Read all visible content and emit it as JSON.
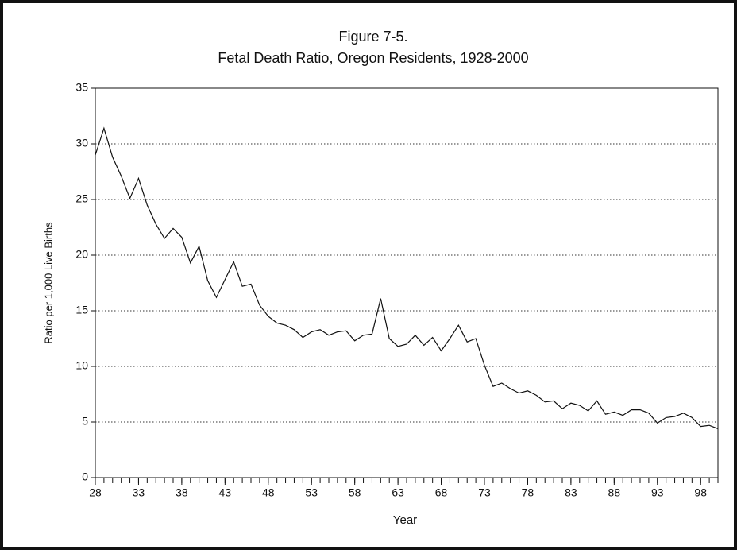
{
  "chart_data": {
    "type": "line",
    "title": "Figure 7-5.",
    "subtitle": "Fetal Death Ratio, Oregon Residents, 1928-2000",
    "x_label": "Year",
    "y_label": "Ratio per 1,000 Live Births",
    "x": [
      28,
      29,
      30,
      31,
      32,
      33,
      34,
      35,
      36,
      37,
      38,
      39,
      40,
      41,
      42,
      43,
      44,
      45,
      46,
      47,
      48,
      49,
      50,
      51,
      52,
      53,
      54,
      55,
      56,
      57,
      58,
      59,
      60,
      61,
      62,
      63,
      64,
      65,
      66,
      67,
      68,
      69,
      70,
      71,
      72,
      73,
      74,
      75,
      76,
      77,
      78,
      79,
      80,
      81,
      82,
      83,
      84,
      85,
      86,
      87,
      88,
      89,
      90,
      91,
      92,
      93,
      94,
      95,
      96,
      97,
      98,
      99,
      100
    ],
    "series": [
      {
        "color": "#111111",
        "values": [
          29.0,
          31.4,
          28.8,
          27.1,
          25.1,
          26.9,
          24.5,
          22.8,
          21.5,
          22.4,
          21.6,
          19.3,
          20.8,
          17.7,
          16.2,
          17.8,
          19.4,
          17.2,
          17.4,
          15.5,
          14.5,
          13.9,
          13.7,
          13.3,
          12.6,
          13.1,
          13.3,
          12.8,
          13.1,
          13.2,
          12.3,
          12.8,
          12.9,
          16.1,
          12.5,
          11.8,
          12.0,
          12.8,
          11.9,
          12.6,
          11.4,
          12.5,
          13.7,
          12.2,
          12.5,
          10.1,
          8.2,
          8.5,
          8.0,
          7.6,
          7.8,
          7.4,
          6.8,
          6.9,
          6.2,
          6.7,
          6.5,
          6.0,
          6.9,
          5.7,
          5.9,
          5.6,
          6.1,
          6.1,
          5.8,
          4.9,
          5.4,
          5.5,
          5.8,
          5.4,
          4.6,
          4.7,
          4.4
        ]
      }
    ],
    "xlim": [
      28,
      100
    ],
    "xticks": [
      28,
      33,
      38,
      43,
      48,
      53,
      58,
      63,
      68,
      73,
      78,
      83,
      88,
      93,
      98
    ],
    "ylim": [
      0,
      35
    ],
    "yticks": [
      0,
      5,
      10,
      15,
      20,
      25,
      30,
      35
    ],
    "grid": true
  }
}
